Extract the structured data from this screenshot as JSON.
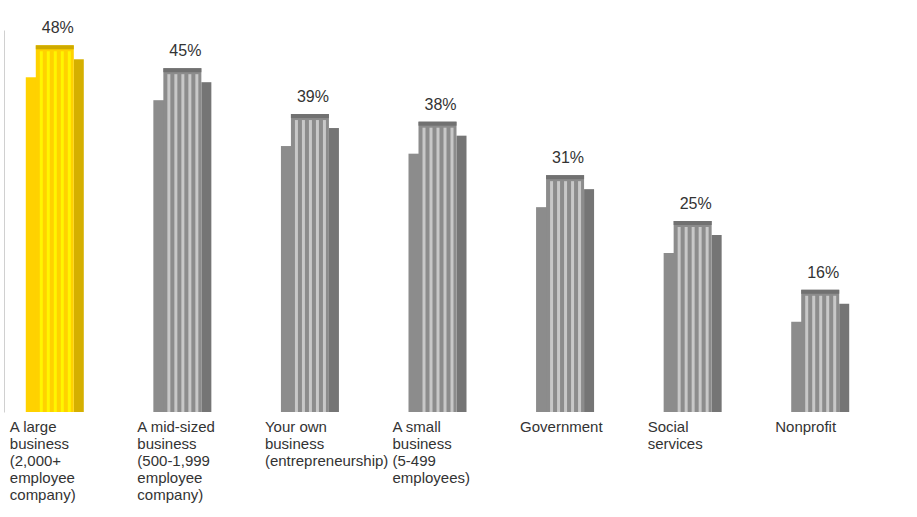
{
  "chart_data": {
    "type": "bar",
    "categories": [
      "A large business (2,000+ employee company)",
      "A mid-sized business (500-1,999 employee company)",
      "Your own business (entrepreneurship)",
      "A small business (5-499 employees)",
      "Government",
      "Social services",
      "Nonprofit"
    ],
    "values": [
      48,
      45,
      39,
      38,
      31,
      25,
      16
    ],
    "value_labels": [
      "48%",
      "45%",
      "39%",
      "38%",
      "31%",
      "25%",
      "16%"
    ],
    "colors": [
      "#ffd200",
      "#8c8c8c",
      "#8c8c8c",
      "#8c8c8c",
      "#8c8c8c",
      "#8c8c8c",
      "#8c8c8c"
    ],
    "ylim": [
      0,
      50
    ],
    "yticks": [],
    "grid": false,
    "data_labels": true,
    "tick_labels": "x"
  }
}
